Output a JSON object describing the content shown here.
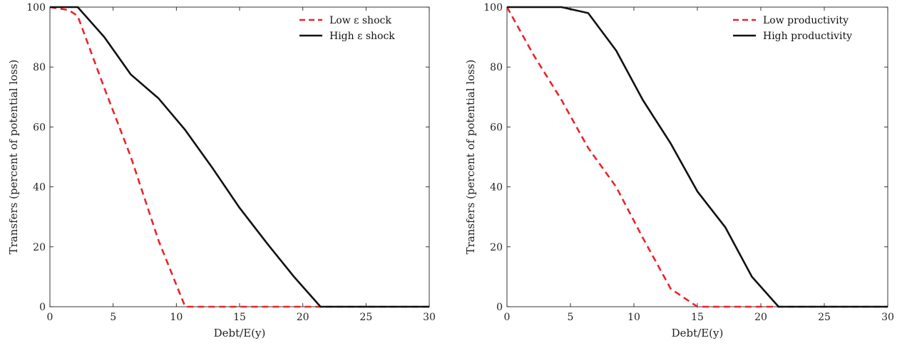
{
  "chart_data": [
    {
      "type": "line",
      "xlabel": "Debt/E(y)",
      "ylabel": "Transfers (percent of potential loss)",
      "xlim": [
        0,
        30
      ],
      "ylim": [
        0,
        100
      ],
      "xticks": [
        "0",
        "5",
        "10",
        "15",
        "20",
        "25",
        "30"
      ],
      "yticks": [
        "0",
        "20",
        "40",
        "60",
        "80",
        "100"
      ],
      "grid": false,
      "legend_position": "top-right",
      "series": [
        {
          "name": "Low ε shock",
          "style": "dashed",
          "color": "#e8242b",
          "x": [
            0,
            1.5,
            2.2,
            4.3,
            6.4,
            8.6,
            10.7,
            12,
            15,
            20,
            25,
            30
          ],
          "y": [
            100,
            99,
            97,
            73,
            50,
            22,
            0,
            0,
            0,
            0,
            0,
            0
          ]
        },
        {
          "name": "High ε shock",
          "style": "solid",
          "color": "#111111",
          "x": [
            0,
            2.2,
            4.3,
            6.4,
            8.6,
            10.7,
            12.9,
            15,
            17.2,
            19.3,
            21.4,
            25,
            30
          ],
          "y": [
            100,
            100,
            90,
            77.5,
            69.5,
            59,
            46,
            33,
            21,
            10,
            0,
            0,
            0
          ]
        }
      ]
    },
    {
      "type": "line",
      "xlabel": "Debt/E(y)",
      "ylabel": "Transfers (percent of potential loss)",
      "xlim": [
        0,
        30
      ],
      "ylim": [
        0,
        100
      ],
      "xticks": [
        "0",
        "5",
        "10",
        "15",
        "20",
        "25",
        "30"
      ],
      "yticks": [
        "0",
        "20",
        "40",
        "60",
        "80",
        "100"
      ],
      "grid": false,
      "legend_position": "top-right",
      "series": [
        {
          "name": "Low productivity",
          "style": "dashed",
          "color": "#e8242b",
          "x": [
            0,
            2.1,
            4.3,
            6.4,
            8.6,
            10.7,
            12.9,
            15,
            17.2,
            19.3,
            21.4,
            25,
            30
          ],
          "y": [
            100,
            84,
            69,
            53,
            40,
            23,
            6,
            0,
            0,
            0,
            0,
            0,
            0
          ]
        },
        {
          "name": "High productivity",
          "style": "solid",
          "color": "#111111",
          "x": [
            0,
            2.1,
            4.3,
            6.4,
            8.6,
            10.7,
            12.9,
            15,
            17.2,
            19.3,
            21.4,
            25,
            30
          ],
          "y": [
            100,
            100,
            100,
            98,
            85.5,
            69,
            54.5,
            38.5,
            26.5,
            10,
            0,
            0,
            0
          ]
        }
      ]
    }
  ]
}
